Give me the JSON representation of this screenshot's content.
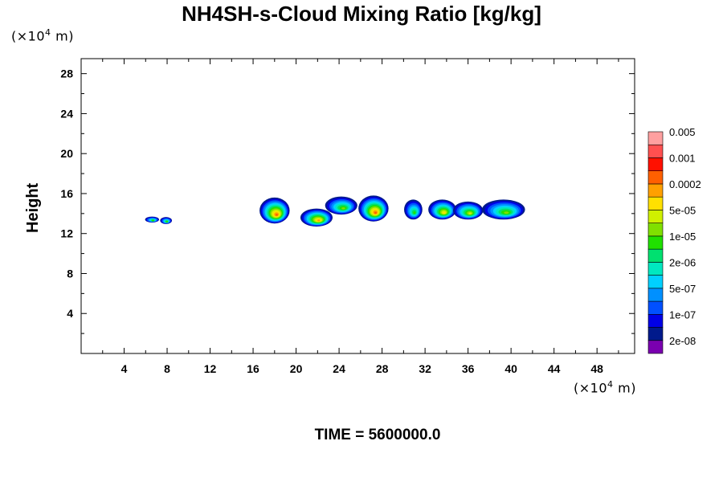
{
  "chart_data": {
    "type": "heatmap",
    "title": "NH4SH-s-Cloud Mixing Ratio [kg/kg]",
    "ylabel": "Height",
    "x_unit": {
      "prefix": "(×10",
      "exp": "4",
      "suffix": " m)"
    },
    "y_unit": {
      "prefix": "(×10",
      "exp": "4",
      "suffix": " m)"
    },
    "footer": "TIME = 5600000.0",
    "xlim": [
      0,
      51.5
    ],
    "ylim": [
      0,
      29.5
    ],
    "x_ticks": [
      4,
      8,
      12,
      16,
      20,
      24,
      28,
      32,
      36,
      40,
      44,
      48
    ],
    "y_ticks": [
      4,
      8,
      12,
      16,
      20,
      24,
      28
    ],
    "grid": false,
    "colorbar": {
      "placement": "right",
      "colors": [
        "#7a00b0",
        "#001a8c",
        "#0000e6",
        "#0050ff",
        "#0090ff",
        "#00d0ff",
        "#00e8c0",
        "#00e070",
        "#20e000",
        "#80e000",
        "#d0f000",
        "#ffe000",
        "#ffa000",
        "#ff6000",
        "#ff1000",
        "#ff5050",
        "#ffa0a0"
      ],
      "labels": [
        "2e-08",
        "1e-07",
        "5e-07",
        "2e-06",
        "1e-05",
        "5e-05",
        "0.0002",
        "0.001",
        "0.005"
      ]
    },
    "clouds": [
      {
        "x": 6.6,
        "y": 13.4,
        "w": 1.3,
        "h": 0.6,
        "level": 8
      },
      {
        "x": 7.9,
        "y": 13.3,
        "w": 1.1,
        "h": 0.7,
        "level": 8
      },
      {
        "x": 18.0,
        "y": 14.3,
        "w": 2.8,
        "h": 2.6,
        "level": 13
      },
      {
        "x": 21.9,
        "y": 13.6,
        "w": 3.0,
        "h": 1.8,
        "level": 12
      },
      {
        "x": 24.2,
        "y": 14.8,
        "w": 3.0,
        "h": 1.8,
        "level": 9
      },
      {
        "x": 27.2,
        "y": 14.5,
        "w": 2.8,
        "h": 2.6,
        "level": 13
      },
      {
        "x": 30.9,
        "y": 14.4,
        "w": 1.7,
        "h": 2.0,
        "level": 8
      },
      {
        "x": 33.6,
        "y": 14.4,
        "w": 2.6,
        "h": 2.0,
        "level": 11
      },
      {
        "x": 36.0,
        "y": 14.3,
        "w": 2.8,
        "h": 1.8,
        "level": 10
      },
      {
        "x": 39.3,
        "y": 14.4,
        "w": 4.0,
        "h": 2.0,
        "level": 9
      }
    ]
  }
}
